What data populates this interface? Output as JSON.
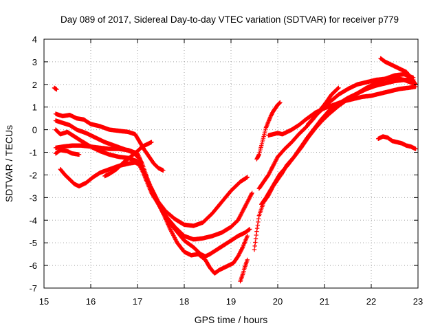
{
  "chart_data": {
    "type": "scatter",
    "title": "Day 089 of 2017, Sidereal Day-to-day VTEC variation (SDTVAR) for receiver p779",
    "xlabel": "GPS time / hours",
    "ylabel": "SDTVAR / TECUs",
    "xlim": [
      15,
      23
    ],
    "ylim": [
      -7,
      4
    ],
    "xticks": [
      "15",
      "16",
      "17",
      "18",
      "19",
      "20",
      "21",
      "22",
      "23"
    ],
    "yticks": [
      "4",
      "3",
      "2",
      "1",
      "0",
      "-1",
      "-2",
      "-3",
      "-4",
      "-5",
      "-6",
      "-7"
    ],
    "grid": true,
    "marker": "+",
    "color": "#ff0000",
    "series": [
      {
        "name": "trace-1",
        "points": [
          [
            15.22,
            1.85
          ],
          [
            15.27,
            1.78
          ]
        ]
      },
      {
        "name": "trace-2",
        "points": [
          [
            15.25,
            0.7
          ],
          [
            15.4,
            0.6
          ],
          [
            15.55,
            0.65
          ],
          [
            15.7,
            0.5
          ],
          [
            15.85,
            0.45
          ],
          [
            16.0,
            0.25
          ],
          [
            16.2,
            0.15
          ],
          [
            16.4,
            0.0
          ],
          [
            16.6,
            -0.05
          ],
          [
            16.8,
            -0.1
          ],
          [
            16.95,
            -0.2
          ],
          [
            17.05,
            -0.55
          ],
          [
            17.15,
            -0.9
          ],
          [
            17.25,
            -1.2
          ],
          [
            17.35,
            -1.5
          ],
          [
            17.45,
            -1.7
          ],
          [
            17.55,
            -1.8
          ]
        ]
      },
      {
        "name": "trace-3",
        "points": [
          [
            15.25,
            0.0
          ],
          [
            15.35,
            -0.2
          ],
          [
            15.5,
            -0.1
          ],
          [
            15.65,
            -0.3
          ],
          [
            15.8,
            -0.5
          ],
          [
            16.0,
            -0.75
          ],
          [
            16.2,
            -0.95
          ],
          [
            16.4,
            -1.1
          ],
          [
            16.6,
            -1.2
          ],
          [
            16.8,
            -1.25
          ],
          [
            17.0,
            -1.4
          ],
          [
            17.1,
            -1.8
          ],
          [
            17.2,
            -2.3
          ],
          [
            17.3,
            -2.8
          ],
          [
            17.45,
            -3.3
          ],
          [
            17.6,
            -3.8
          ],
          [
            17.8,
            -4.3
          ],
          [
            18.0,
            -4.7
          ],
          [
            18.2,
            -4.85
          ],
          [
            18.4,
            -4.8
          ],
          [
            18.6,
            -4.7
          ],
          [
            18.8,
            -4.55
          ],
          [
            19.0,
            -4.3
          ],
          [
            19.15,
            -4.0
          ],
          [
            19.25,
            -3.6
          ],
          [
            19.35,
            -3.2
          ],
          [
            19.45,
            -2.8
          ]
        ]
      },
      {
        "name": "trace-4",
        "points": [
          [
            15.25,
            -0.8
          ],
          [
            15.4,
            -0.75
          ],
          [
            15.6,
            -0.7
          ],
          [
            15.8,
            -0.7
          ],
          [
            16.0,
            -0.75
          ],
          [
            16.2,
            -0.8
          ],
          [
            16.4,
            -0.85
          ],
          [
            16.6,
            -0.85
          ],
          [
            16.8,
            -0.9
          ],
          [
            17.0,
            -1.05
          ],
          [
            17.1,
            -1.5
          ],
          [
            17.2,
            -2.1
          ],
          [
            17.3,
            -2.7
          ],
          [
            17.45,
            -3.2
          ],
          [
            17.6,
            -3.6
          ],
          [
            17.8,
            -3.95
          ],
          [
            18.0,
            -4.2
          ],
          [
            18.2,
            -4.25
          ],
          [
            18.4,
            -4.1
          ],
          [
            18.6,
            -3.7
          ],
          [
            18.8,
            -3.2
          ],
          [
            19.0,
            -2.7
          ],
          [
            19.2,
            -2.3
          ],
          [
            19.35,
            -2.1
          ]
        ]
      },
      {
        "name": "trace-5",
        "points": [
          [
            15.25,
            0.4
          ],
          [
            15.4,
            0.3
          ],
          [
            15.55,
            0.2
          ],
          [
            15.7,
            0.0
          ],
          [
            15.9,
            -0.15
          ],
          [
            16.1,
            -0.35
          ],
          [
            16.3,
            -0.55
          ],
          [
            16.5,
            -0.7
          ],
          [
            16.7,
            -0.85
          ],
          [
            16.9,
            -1.0
          ],
          [
            17.05,
            -1.3
          ],
          [
            17.15,
            -1.9
          ],
          [
            17.3,
            -2.6
          ],
          [
            17.45,
            -3.3
          ],
          [
            17.6,
            -3.9
          ],
          [
            17.8,
            -4.4
          ],
          [
            18.0,
            -4.9
          ],
          [
            18.2,
            -5.2
          ],
          [
            18.35,
            -5.5
          ],
          [
            18.45,
            -5.6
          ],
          [
            18.55,
            -5.5
          ],
          [
            18.7,
            -5.3
          ],
          [
            18.85,
            -5.1
          ],
          [
            19.0,
            -4.9
          ],
          [
            19.15,
            -4.7
          ],
          [
            19.3,
            -4.55
          ],
          [
            19.4,
            -4.4
          ]
        ]
      },
      {
        "name": "trace-6",
        "points": [
          [
            15.35,
            -1.75
          ],
          [
            15.45,
            -2.0
          ],
          [
            15.55,
            -2.2
          ],
          [
            15.65,
            -2.4
          ],
          [
            15.75,
            -2.5
          ],
          [
            15.9,
            -2.35
          ],
          [
            16.05,
            -2.1
          ],
          [
            16.2,
            -1.9
          ],
          [
            16.4,
            -1.75
          ],
          [
            16.6,
            -1.6
          ],
          [
            16.8,
            -1.5
          ],
          [
            16.95,
            -1.45
          ],
          [
            17.05,
            -1.55
          ],
          [
            17.15,
            -1.9
          ],
          [
            17.25,
            -2.4
          ],
          [
            17.4,
            -3.0
          ],
          [
            17.55,
            -3.7
          ],
          [
            17.7,
            -4.4
          ],
          [
            17.85,
            -5.0
          ],
          [
            18.0,
            -5.4
          ],
          [
            18.15,
            -5.55
          ],
          [
            18.3,
            -5.5
          ],
          [
            18.45,
            -5.75
          ],
          [
            18.55,
            -6.1
          ],
          [
            18.65,
            -6.35
          ],
          [
            18.75,
            -6.2
          ],
          [
            18.9,
            -6.05
          ],
          [
            19.05,
            -5.9
          ],
          [
            19.15,
            -5.6
          ],
          [
            19.25,
            -5.2
          ],
          [
            19.35,
            -4.7
          ]
        ]
      },
      {
        "name": "trace-7",
        "points": [
          [
            16.3,
            -2.05
          ],
          [
            16.4,
            -1.95
          ],
          [
            16.55,
            -1.75
          ],
          [
            16.7,
            -1.45
          ],
          [
            16.85,
            -1.2
          ],
          [
            17.0,
            -0.95
          ],
          [
            17.1,
            -0.75
          ],
          [
            17.2,
            -0.65
          ],
          [
            17.3,
            -0.55
          ]
        ]
      },
      {
        "name": "trace-8",
        "points": [
          [
            15.25,
            -1.05
          ],
          [
            15.35,
            -0.9
          ],
          [
            15.5,
            -0.95
          ],
          [
            15.6,
            -1.05
          ],
          [
            15.75,
            -1.1
          ]
        ]
      },
      {
        "name": "trace-9",
        "points": [
          [
            19.2,
            -6.7
          ],
          [
            19.25,
            -6.4
          ],
          [
            19.3,
            -6.05
          ],
          [
            19.35,
            -5.75
          ]
        ]
      },
      {
        "name": "trace-10",
        "points": [
          [
            19.55,
            -1.3
          ],
          [
            19.6,
            -1.1
          ],
          [
            19.65,
            -0.7
          ],
          [
            19.7,
            -0.3
          ],
          [
            19.75,
            0.1
          ],
          [
            19.8,
            0.35
          ],
          [
            19.85,
            0.6
          ],
          [
            19.9,
            0.8
          ],
          [
            19.95,
            0.95
          ],
          [
            20.0,
            1.1
          ],
          [
            20.05,
            1.2
          ]
        ]
      },
      {
        "name": "trace-11",
        "points": [
          [
            19.6,
            -2.6
          ],
          [
            19.7,
            -2.3
          ],
          [
            19.8,
            -2.0
          ],
          [
            19.9,
            -1.6
          ],
          [
            20.0,
            -1.2
          ],
          [
            20.15,
            -0.85
          ],
          [
            20.3,
            -0.55
          ],
          [
            20.45,
            -0.2
          ],
          [
            20.6,
            0.1
          ],
          [
            20.75,
            0.45
          ],
          [
            20.9,
            0.85
          ],
          [
            21.05,
            1.25
          ],
          [
            21.15,
            1.55
          ],
          [
            21.25,
            1.75
          ],
          [
            21.3,
            1.85
          ]
        ]
      },
      {
        "name": "trace-12",
        "points": [
          [
            19.65,
            -3.3
          ],
          [
            19.75,
            -3.0
          ],
          [
            19.85,
            -2.65
          ],
          [
            19.95,
            -2.3
          ],
          [
            20.05,
            -1.95
          ],
          [
            20.2,
            -1.6
          ],
          [
            20.35,
            -1.2
          ],
          [
            20.5,
            -0.75
          ],
          [
            20.65,
            -0.3
          ],
          [
            20.8,
            0.1
          ],
          [
            20.95,
            0.5
          ],
          [
            21.1,
            0.85
          ],
          [
            21.3,
            1.15
          ],
          [
            21.5,
            1.4
          ],
          [
            21.7,
            1.6
          ],
          [
            21.9,
            1.8
          ],
          [
            22.1,
            1.95
          ],
          [
            22.3,
            2.05
          ],
          [
            22.5,
            2.15
          ],
          [
            22.7,
            2.2
          ],
          [
            22.9,
            2.2
          ]
        ]
      },
      {
        "name": "trace-13",
        "points": [
          [
            19.5,
            -5.3
          ],
          [
            19.55,
            -4.5
          ],
          [
            19.6,
            -3.8
          ],
          [
            19.7,
            -3.2
          ],
          [
            19.8,
            -2.9
          ],
          [
            19.9,
            -2.5
          ],
          [
            20.0,
            -2.2
          ],
          [
            20.1,
            -1.9
          ],
          [
            20.2,
            -1.55
          ],
          [
            20.35,
            -1.2
          ],
          [
            20.5,
            -0.8
          ],
          [
            20.65,
            -0.35
          ],
          [
            20.8,
            0.05
          ],
          [
            20.95,
            0.4
          ],
          [
            21.1,
            0.7
          ],
          [
            21.3,
            1.05
          ],
          [
            21.5,
            1.35
          ],
          [
            21.7,
            1.6
          ],
          [
            21.9,
            1.85
          ],
          [
            22.1,
            2.05
          ],
          [
            22.3,
            2.25
          ],
          [
            22.5,
            2.4
          ],
          [
            22.7,
            2.45
          ],
          [
            22.9,
            2.3
          ]
        ]
      },
      {
        "name": "trace-14",
        "points": [
          [
            19.8,
            -0.25
          ],
          [
            19.9,
            -0.2
          ],
          [
            20.0,
            -0.15
          ],
          [
            20.1,
            -0.2
          ],
          [
            20.2,
            -0.1
          ],
          [
            20.3,
            0.0
          ],
          [
            20.45,
            0.2
          ],
          [
            20.6,
            0.45
          ],
          [
            20.8,
            0.75
          ],
          [
            21.0,
            0.95
          ],
          [
            21.2,
            1.1
          ],
          [
            21.4,
            1.25
          ],
          [
            21.6,
            1.35
          ],
          [
            21.8,
            1.45
          ],
          [
            22.0,
            1.5
          ],
          [
            22.2,
            1.6
          ],
          [
            22.4,
            1.7
          ],
          [
            22.6,
            1.8
          ],
          [
            22.8,
            1.85
          ],
          [
            22.95,
            1.9
          ]
        ]
      },
      {
        "name": "trace-15",
        "points": [
          [
            20.65,
            0.25
          ],
          [
            20.8,
            0.6
          ],
          [
            20.95,
            0.9
          ],
          [
            21.1,
            1.2
          ],
          [
            21.3,
            1.55
          ],
          [
            21.5,
            1.8
          ],
          [
            21.7,
            2.0
          ],
          [
            21.9,
            2.1
          ],
          [
            22.1,
            2.2
          ],
          [
            22.3,
            2.25
          ],
          [
            22.5,
            2.3
          ],
          [
            22.7,
            2.2
          ],
          [
            22.9,
            2.05
          ]
        ]
      },
      {
        "name": "trace-16",
        "points": [
          [
            22.2,
            3.15
          ],
          [
            22.3,
            3.0
          ],
          [
            22.45,
            2.85
          ],
          [
            22.6,
            2.7
          ],
          [
            22.75,
            2.55
          ],
          [
            22.85,
            2.3
          ],
          [
            22.95,
            2.0
          ]
        ]
      },
      {
        "name": "trace-17",
        "points": [
          [
            22.15,
            -0.4
          ],
          [
            22.25,
            -0.3
          ],
          [
            22.35,
            -0.35
          ],
          [
            22.45,
            -0.5
          ],
          [
            22.55,
            -0.55
          ],
          [
            22.65,
            -0.6
          ],
          [
            22.75,
            -0.7
          ],
          [
            22.85,
            -0.75
          ],
          [
            22.95,
            -0.85
          ]
        ]
      }
    ]
  }
}
